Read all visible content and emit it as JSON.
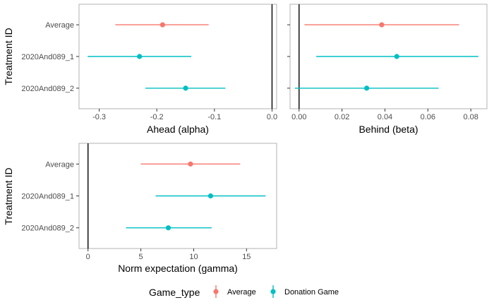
{
  "chart_data": [
    {
      "type": "scatter",
      "xlabel": "Ahead (alpha)",
      "ylabel": "Treatment ID",
      "categories": [
        "Average",
        "2020And089_1",
        "2020And089_2"
      ],
      "xlim": [
        -0.335,
        0.008
      ],
      "xticks": [
        -0.3,
        -0.2,
        -0.1,
        0.0
      ],
      "xtick_labels": [
        "-0.3",
        "-0.2",
        "-0.1",
        "0.0"
      ],
      "reference_line": 0,
      "points": [
        {
          "category": "Average",
          "series": "Average",
          "x": -0.19,
          "lo": -0.272,
          "hi": -0.11
        },
        {
          "category": "2020And089_1",
          "series": "Donation Game",
          "x": -0.23,
          "lo": -0.32,
          "hi": -0.14
        },
        {
          "category": "2020And089_2",
          "series": "Donation Game",
          "x": -0.15,
          "lo": -0.22,
          "hi": -0.081
        }
      ]
    },
    {
      "type": "scatter",
      "xlabel": "Behind (beta)",
      "ylabel": "",
      "categories": [
        "Average",
        "2020And089_1",
        "2020And089_2"
      ],
      "xlim": [
        -0.0042,
        0.0875
      ],
      "xticks": [
        0.0,
        0.02,
        0.04,
        0.06,
        0.08
      ],
      "xtick_labels": [
        "0.00",
        "0.02",
        "0.04",
        "0.06",
        "0.08"
      ],
      "reference_line": 0,
      "points": [
        {
          "category": "Average",
          "series": "Average",
          "x": 0.0385,
          "lo": 0.0025,
          "hi": 0.0745
        },
        {
          "category": "2020And089_1",
          "series": "Donation Game",
          "x": 0.0455,
          "lo": 0.008,
          "hi": 0.0835
        },
        {
          "category": "2020And089_2",
          "series": "Donation Game",
          "x": 0.0315,
          "lo": -0.002,
          "hi": 0.065
        }
      ]
    },
    {
      "type": "scatter",
      "xlabel": "Norm expectation (gamma)",
      "ylabel": "Treatment ID",
      "categories": [
        "Average",
        "2020And089_1",
        "2020And089_2"
      ],
      "xlim": [
        -0.85,
        17.85
      ],
      "xticks": [
        0,
        5,
        10,
        15
      ],
      "xtick_labels": [
        "0",
        "5",
        "10",
        "15"
      ],
      "reference_line": 0,
      "points": [
        {
          "category": "Average",
          "series": "Average",
          "x": 9.7,
          "lo": 5.0,
          "hi": 14.4
        },
        {
          "category": "2020And089_1",
          "series": "Donation Game",
          "x": 11.6,
          "lo": 6.4,
          "hi": 16.8
        },
        {
          "category": "2020And089_2",
          "series": "Donation Game",
          "x": 7.6,
          "lo": 3.6,
          "hi": 11.7
        }
      ]
    }
  ],
  "legend": {
    "title": "Game_type",
    "placement": "bottom",
    "items": [
      {
        "label": "Average",
        "color": "#F8766D"
      },
      {
        "label": "Donation Game",
        "color": "#00BFC4"
      }
    ]
  }
}
